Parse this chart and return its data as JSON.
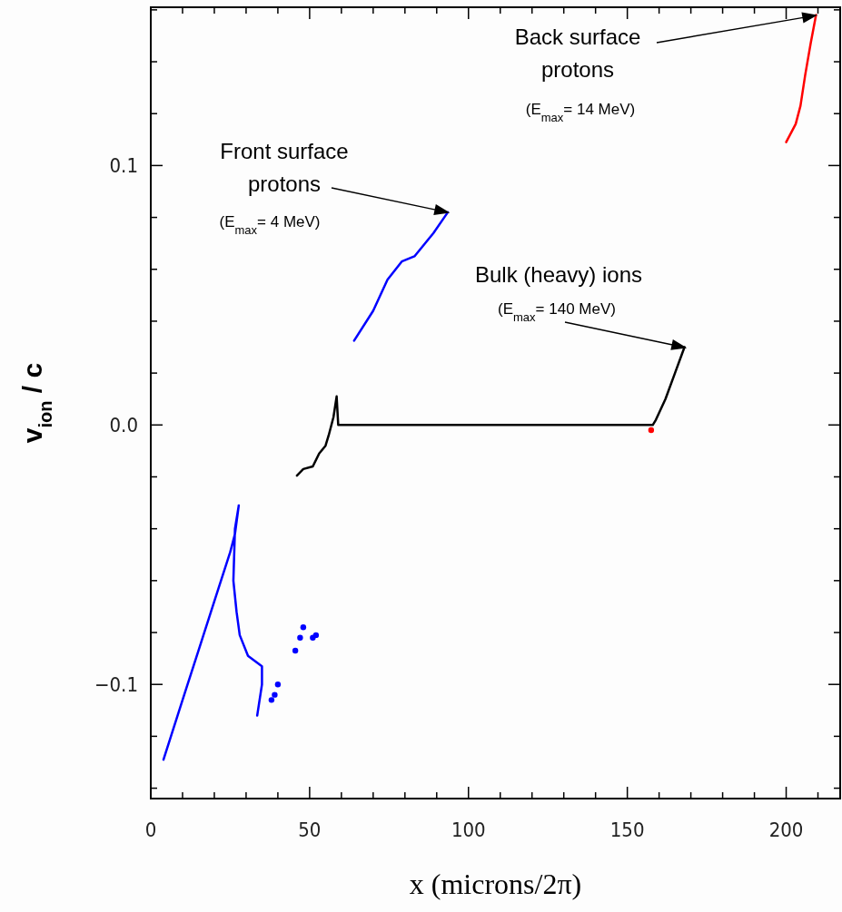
{
  "chart_data": {
    "type": "line",
    "xlabel": "x  (microns/2π)",
    "ylabel": "v$_{ion}$ / c",
    "xlim": [
      0,
      217
    ],
    "ylim": [
      -0.144,
      0.161
    ],
    "xticks": [
      0,
      {
        "value": 10,
        "label": null
      },
      {
        "value": 20,
        "label": null
      },
      {
        "value": 30,
        "label": null
      },
      {
        "value": 40,
        "label": null
      },
      50,
      {
        "value": 60,
        "label": null
      },
      {
        "value": 70,
        "label": null
      },
      {
        "value": 80,
        "label": null
      },
      {
        "value": 90,
        "label": null
      },
      100,
      {
        "value": 110,
        "label": null
      },
      {
        "value": 120,
        "label": null
      },
      {
        "value": 130,
        "label": null
      },
      {
        "value": 140,
        "label": null
      },
      150,
      {
        "value": 160,
        "label": null
      },
      {
        "value": 170,
        "label": null
      },
      {
        "value": 180,
        "label": null
      },
      {
        "value": 190,
        "label": null
      },
      200,
      {
        "value": 210,
        "label": null
      }
    ],
    "yticks": [
      {
        "value": -0.14,
        "label": null
      },
      {
        "value": -0.12,
        "label": null
      },
      {
        "value": -0.1,
        "label": "−0.1"
      },
      {
        "value": -0.08,
        "label": null
      },
      {
        "value": -0.06,
        "label": null
      },
      {
        "value": -0.04,
        "label": null
      },
      {
        "value": -0.02,
        "label": null
      },
      {
        "value": 0,
        "label": "0.0"
      },
      {
        "value": 0.02,
        "label": null
      },
      {
        "value": 0.04,
        "label": null
      },
      {
        "value": 0.06,
        "label": null
      },
      {
        "value": 0.08,
        "label": null
      },
      {
        "value": 0.1,
        "label": "0.1"
      },
      {
        "value": 0.12,
        "label": null
      },
      {
        "value": 0.14,
        "label": null
      },
      {
        "value": 0.16,
        "label": null
      }
    ],
    "series": [
      {
        "color": "#0000ff",
        "x": [
          4,
          10,
          15,
          20,
          25,
          26.5,
          27.7,
          26.5,
          26,
          27,
          28,
          30.6,
          35,
          35,
          33.5
        ],
        "values": [
          -0.129,
          -0.106,
          -0.087,
          -0.068,
          -0.049,
          -0.042,
          -0.031,
          -0.04,
          -0.06,
          -0.072,
          -0.081,
          -0.089,
          -0.093,
          -0.1,
          -0.112
        ]
      },
      {
        "type": "scatter",
        "marker": "circle",
        "color": "#0000ff",
        "x": [
          38,
          39,
          40,
          45.5,
          47,
          48,
          51,
          52
        ],
        "values": [
          -0.106,
          -0.104,
          -0.1,
          -0.087,
          -0.082,
          -0.078,
          -0.082,
          -0.081
        ]
      },
      {
        "color": "#0000ff",
        "x": [
          64,
          70,
          74.5,
          79,
          83,
          89,
          93.5
        ],
        "values": [
          0.0325,
          0.044,
          0.056,
          0.063,
          0.065,
          0.074,
          0.082
        ]
      },
      {
        "color": "#000000",
        "x": [
          46,
          48,
          51,
          53,
          55,
          56,
          57.5,
          58.5,
          59,
          60,
          100,
          158,
          159,
          162,
          165,
          168
        ],
        "values": [
          -0.0195,
          -0.017,
          -0.016,
          -0.011,
          -0.008,
          -0.004,
          0.003,
          0.011,
          0,
          0,
          0,
          0,
          0.002,
          0.01,
          0.02,
          0.03
        ]
      },
      {
        "color": "#ff0000",
        "x": [
          200,
          203,
          204.5,
          206,
          207.7,
          209.4
        ],
        "values": [
          0.109,
          0.116,
          0.123,
          0.135,
          0.147,
          0.158
        ]
      },
      {
        "type": "scatter",
        "marker": "circle",
        "color": "#ff0000",
        "x": [
          157.5
        ],
        "values": [
          -0.002
        ]
      }
    ],
    "annotations": [
      "Front surface protons",
      "(E$_{max}$= 4 MeV)",
      "Bulk (heavy) ions",
      "(E$_{max}$= 140 MeV)",
      "Back surface protons",
      "(E$_{max}$= 14 MeV)"
    ]
  }
}
